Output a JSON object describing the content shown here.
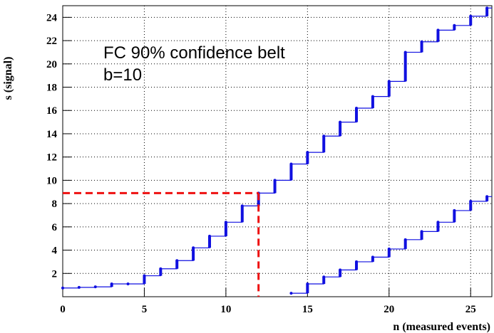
{
  "chart_data": {
    "type": "step",
    "annotations": [
      "FC 90% confidence belt",
      "b=10"
    ],
    "x_label": "n (measured events)",
    "y_label": "s (signal)",
    "xlim": [
      0,
      26.3
    ],
    "ylim": [
      0,
      25
    ],
    "xticks": [
      0,
      5,
      10,
      15,
      20,
      25
    ],
    "yticks": [
      2,
      4,
      6,
      8,
      10,
      12,
      14,
      16,
      18,
      20,
      22,
      24
    ],
    "grid": true,
    "series": [
      {
        "color": "#1010e0",
        "x": [
          0,
          1,
          2,
          3,
          4,
          5,
          6,
          7,
          8,
          9,
          10,
          11,
          12,
          13,
          14,
          15,
          16,
          17,
          18,
          19,
          20,
          21,
          22,
          23,
          24,
          25,
          26
        ],
        "values": [
          0.75,
          0.8,
          0.85,
          1.1,
          1.1,
          1.8,
          2.4,
          3.1,
          4.2,
          5.2,
          6.4,
          7.8,
          8.9,
          10.0,
          11.4,
          12.4,
          13.8,
          15.0,
          16.2,
          17.2,
          18.5,
          21.0,
          21.9,
          22.9,
          23.3,
          24.1,
          24.8
        ]
      },
      {
        "color": "#1010e0",
        "x": [
          14,
          15,
          16,
          17,
          18,
          19,
          20,
          21,
          22,
          23,
          24,
          25,
          26
        ],
        "values": [
          0.3,
          1.1,
          1.7,
          2.3,
          3.0,
          3.4,
          4.1,
          4.9,
          5.6,
          6.4,
          7.4,
          8.2,
          8.6
        ]
      }
    ],
    "reference": {
      "color": "#ee1111",
      "n": 12,
      "s": 8.9
    }
  }
}
